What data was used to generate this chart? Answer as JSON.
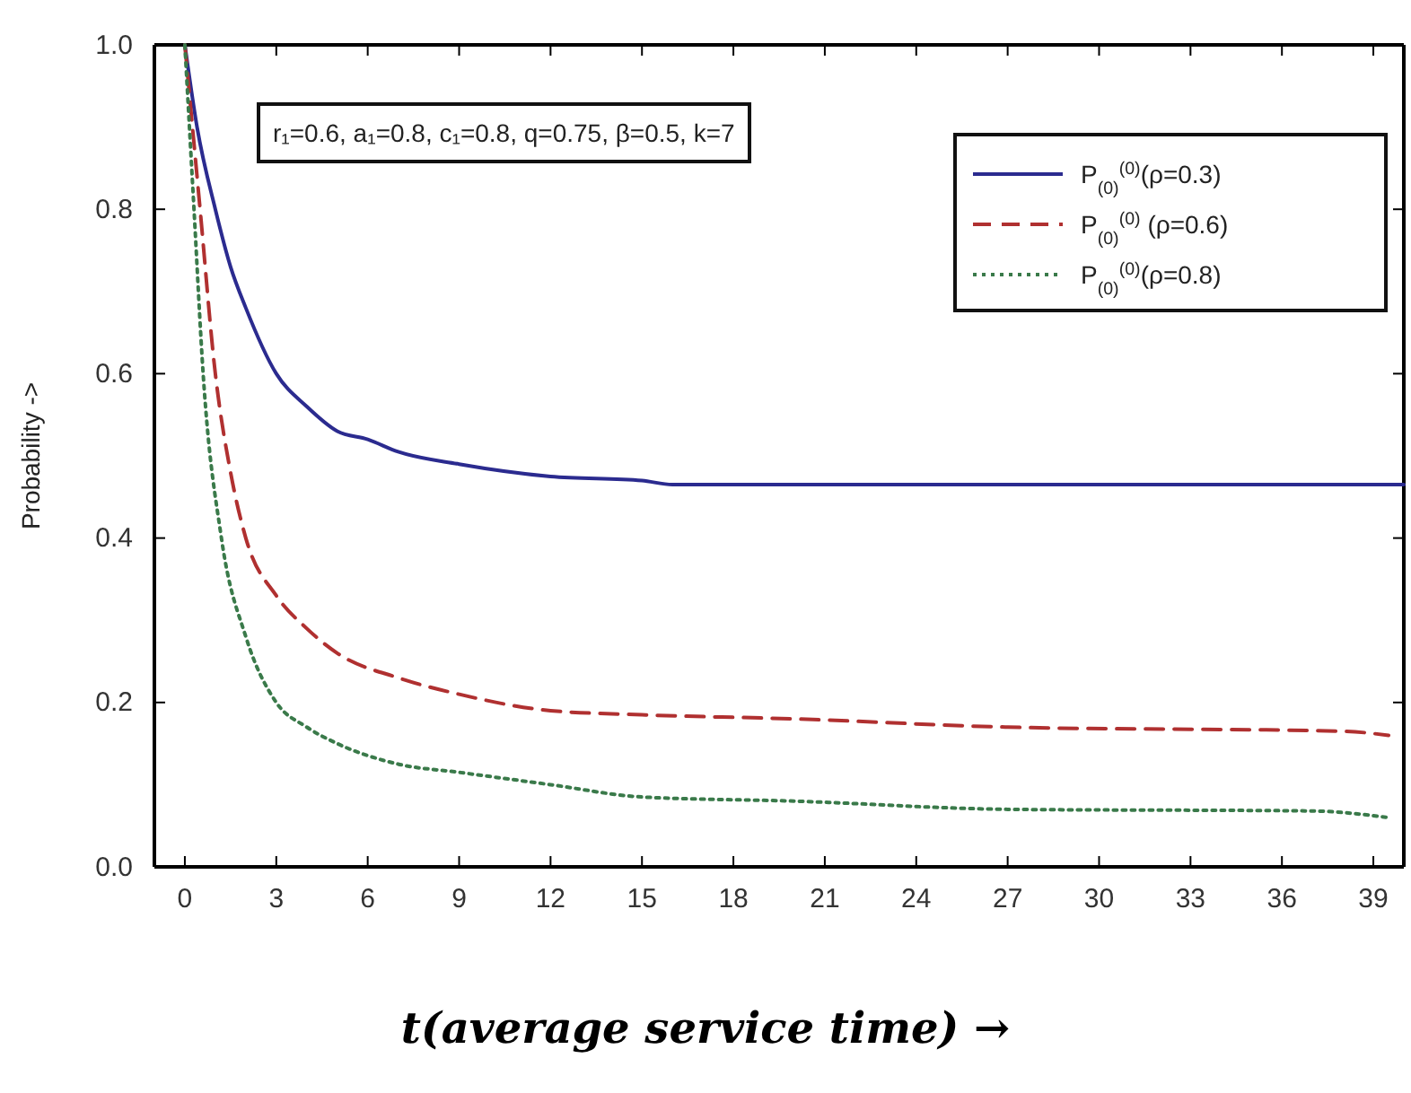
{
  "chart_data": {
    "type": "line",
    "xlabel": "t(average service time) →",
    "ylabel": "Probability ->",
    "annotations": [
      "r₁=0.6, a₁=0.8, c₁=0.8, q=0.75, β=0.5, k=7"
    ],
    "xlim": [
      -1,
      40
    ],
    "ylim": [
      0,
      1
    ],
    "xticks": [
      0,
      3,
      6,
      9,
      12,
      15,
      18,
      21,
      24,
      27,
      30,
      33,
      36,
      39
    ],
    "yticks": [
      {
        "value": 0,
        "label": "0.0"
      },
      0.2,
      0.4,
      0.6,
      0.8,
      {
        "value": 1,
        "label": "1.0"
      }
    ],
    "legend": "top right",
    "grid": false,
    "series": [
      {
        "name": "P$_{(0)}$$^{(0)}$(ρ=0.3)",
        "color": "#2b2b8f",
        "line_style": "solid",
        "x": [
          0,
          0.4,
          1,
          1.5,
          2,
          3,
          4,
          5,
          6,
          7,
          9,
          12,
          15,
          16,
          20,
          30,
          40
        ],
        "values": [
          1,
          0.9,
          0.8,
          0.73,
          0.68,
          0.6,
          0.56,
          0.53,
          0.52,
          0.505,
          0.49,
          0.475,
          0.47,
          0.465,
          0.465,
          0.465,
          0.465
        ]
      },
      {
        "name": "P$_{(0)}$$^{(0)}$ (ρ=0.6)",
        "color": "#b03030",
        "line_style": "dashed",
        "x": [
          0,
          0.5,
          1,
          1.5,
          2,
          3,
          4,
          5,
          7,
          9,
          12,
          15,
          20,
          27,
          38,
          39.5
        ],
        "values": [
          1,
          0.8,
          0.6,
          0.48,
          0.4,
          0.33,
          0.29,
          0.26,
          0.23,
          0.21,
          0.19,
          0.185,
          0.18,
          0.17,
          0.165,
          0.16
        ]
      },
      {
        "name": "P$_{(0)}$$^{(0)}$(ρ=0.8)",
        "color": "#3a7a4a",
        "line_style": "dotted",
        "x": [
          0,
          0.3,
          0.6,
          1.2,
          2,
          3,
          4,
          5,
          7,
          9,
          12,
          15,
          20,
          27,
          37,
          39.5
        ],
        "values": [
          1,
          0.8,
          0.6,
          0.4,
          0.28,
          0.2,
          0.17,
          0.15,
          0.125,
          0.115,
          0.1,
          0.085,
          0.08,
          0.07,
          0.068,
          0.06
        ]
      }
    ]
  }
}
